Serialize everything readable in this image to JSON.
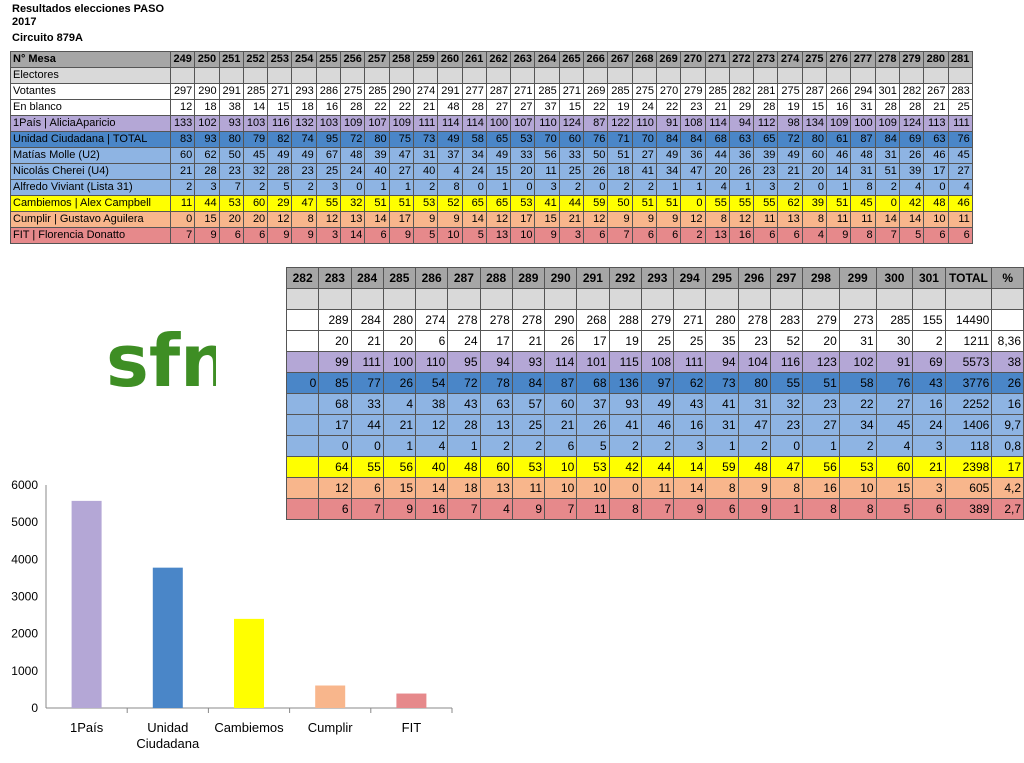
{
  "header": {
    "line1": "Resultados elecciones PASO",
    "line2": "2017",
    "line3": "Circuito 879A"
  },
  "logo_text": "sfn",
  "table1": {
    "head_label": "N° Mesa",
    "cols": [
      "249",
      "250",
      "251",
      "252",
      "253",
      "254",
      "255",
      "256",
      "257",
      "258",
      "259",
      "260",
      "261",
      "262",
      "263",
      "264",
      "265",
      "266",
      "267",
      "268",
      "269",
      "270",
      "271",
      "272",
      "273",
      "274",
      "275",
      "276",
      "277",
      "278",
      "279",
      "280",
      "281"
    ],
    "rows": [
      {
        "label": "Electores",
        "style": "grey",
        "values": [
          "",
          "",
          "",
          "",
          "",
          "",
          "",
          "",
          "",
          "",
          "",
          "",
          "",
          "",
          "",
          "",
          "",
          "",
          "",
          "",
          "",
          "",
          "",
          "",
          "",
          "",
          "",
          "",
          "",
          "",
          "",
          "",
          ""
        ]
      },
      {
        "label": "Votantes",
        "style": "white",
        "values": [
          "297",
          "290",
          "291",
          "285",
          "271",
          "293",
          "286",
          "275",
          "285",
          "290",
          "274",
          "291",
          "277",
          "287",
          "271",
          "285",
          "271",
          "269",
          "285",
          "275",
          "270",
          "279",
          "285",
          "282",
          "281",
          "275",
          "287",
          "266",
          "294",
          "301",
          "282",
          "267",
          "283"
        ]
      },
      {
        "label": "En blanco",
        "style": "white",
        "values": [
          "12",
          "18",
          "38",
          "14",
          "15",
          "18",
          "16",
          "28",
          "22",
          "22",
          "21",
          "48",
          "28",
          "27",
          "27",
          "37",
          "15",
          "22",
          "19",
          "24",
          "22",
          "23",
          "21",
          "29",
          "28",
          "19",
          "15",
          "16",
          "31",
          "28",
          "28",
          "21",
          "25"
        ]
      },
      {
        "label": "1País | AliciaAparicio",
        "style": "purple",
        "values": [
          "133",
          "102",
          "93",
          "103",
          "116",
          "132",
          "103",
          "109",
          "107",
          "109",
          "111",
          "114",
          "114",
          "100",
          "107",
          "110",
          "124",
          "87",
          "122",
          "110",
          "91",
          "108",
          "114",
          "94",
          "112",
          "98",
          "134",
          "109",
          "100",
          "109",
          "124",
          "113",
          "111"
        ]
      },
      {
        "label": "Unidad Ciudadana | TOTAL",
        "style": "darkblue",
        "values": [
          "83",
          "93",
          "80",
          "79",
          "82",
          "74",
          "95",
          "72",
          "80",
          "75",
          "73",
          "49",
          "58",
          "65",
          "53",
          "70",
          "60",
          "76",
          "71",
          "70",
          "84",
          "84",
          "68",
          "63",
          "65",
          "72",
          "80",
          "61",
          "87",
          "84",
          "69",
          "63",
          "76"
        ]
      },
      {
        "label": "Matías Molle (U2)",
        "style": "lightblue",
        "values": [
          "60",
          "62",
          "50",
          "45",
          "49",
          "49",
          "67",
          "48",
          "39",
          "47",
          "31",
          "37",
          "34",
          "49",
          "33",
          "56",
          "33",
          "50",
          "51",
          "27",
          "49",
          "36",
          "44",
          "36",
          "39",
          "49",
          "60",
          "46",
          "48",
          "31",
          "26",
          "46",
          "45"
        ]
      },
      {
        "label": "Nicolás Cherei (U4)",
        "style": "lightblue",
        "values": [
          "21",
          "28",
          "23",
          "32",
          "28",
          "23",
          "25",
          "24",
          "40",
          "27",
          "40",
          "4",
          "24",
          "15",
          "20",
          "11",
          "25",
          "26",
          "18",
          "41",
          "34",
          "47",
          "20",
          "26",
          "23",
          "21",
          "20",
          "14",
          "31",
          "51",
          "39",
          "17",
          "27"
        ]
      },
      {
        "label": "Alfredo Viviant (Lista 31)",
        "style": "lightblue",
        "values": [
          "2",
          "3",
          "7",
          "2",
          "5",
          "2",
          "3",
          "0",
          "1",
          "1",
          "2",
          "8",
          "0",
          "1",
          "0",
          "3",
          "2",
          "0",
          "2",
          "2",
          "1",
          "1",
          "4",
          "1",
          "3",
          "2",
          "0",
          "1",
          "8",
          "2",
          "4",
          "0",
          "4"
        ]
      },
      {
        "label": "Cambiemos | Alex Campbell",
        "style": "yellow",
        "values": [
          "11",
          "44",
          "53",
          "60",
          "29",
          "47",
          "55",
          "32",
          "51",
          "51",
          "53",
          "52",
          "65",
          "65",
          "53",
          "41",
          "44",
          "59",
          "50",
          "51",
          "51",
          "0",
          "55",
          "55",
          "55",
          "62",
          "39",
          "51",
          "45",
          "0",
          "42",
          "48",
          "46"
        ]
      },
      {
        "label": "Cumplir | Gustavo Aguilera",
        "style": "orange",
        "values": [
          "0",
          "15",
          "20",
          "20",
          "12",
          "8",
          "12",
          "13",
          "14",
          "17",
          "9",
          "9",
          "14",
          "12",
          "17",
          "15",
          "21",
          "12",
          "9",
          "9",
          "9",
          "12",
          "8",
          "12",
          "11",
          "13",
          "8",
          "11",
          "11",
          "14",
          "14",
          "10",
          "11"
        ]
      },
      {
        "label": "FIT | Florencia Donatto",
        "style": "red",
        "values": [
          "7",
          "9",
          "6",
          "6",
          "9",
          "9",
          "3",
          "14",
          "6",
          "9",
          "5",
          "10",
          "5",
          "13",
          "10",
          "9",
          "3",
          "6",
          "7",
          "6",
          "6",
          "2",
          "13",
          "16",
          "6",
          "6",
          "4",
          "9",
          "8",
          "7",
          "5",
          "6",
          "6"
        ]
      }
    ]
  },
  "table2": {
    "cols": [
      "282",
      "283",
      "284",
      "285",
      "286",
      "287",
      "288",
      "289",
      "290",
      "291",
      "292",
      "293",
      "294",
      "295",
      "296",
      "297",
      "298",
      "299",
      "300",
      "301",
      "TOTAL",
      "%"
    ],
    "rows": [
      {
        "style": "grey",
        "values": [
          "",
          "",
          "",
          "",
          "",
          "",
          "",
          "",
          "",
          "",
          "",
          "",
          "",
          "",
          "",
          "",
          "",
          "",
          "",
          "",
          "",
          ""
        ]
      },
      {
        "style": "white",
        "values": [
          "",
          "289",
          "284",
          "280",
          "274",
          "278",
          "278",
          "278",
          "290",
          "268",
          "288",
          "279",
          "271",
          "280",
          "278",
          "283",
          "279",
          "273",
          "285",
          "155",
          "14490",
          ""
        ]
      },
      {
        "style": "white",
        "values": [
          "",
          "20",
          "21",
          "20",
          "6",
          "24",
          "17",
          "21",
          "26",
          "17",
          "19",
          "25",
          "25",
          "35",
          "23",
          "52",
          "20",
          "31",
          "30",
          "2",
          "1211",
          "8,36"
        ]
      },
      {
        "style": "purple",
        "values": [
          "",
          "99",
          "111",
          "100",
          "110",
          "95",
          "94",
          "93",
          "114",
          "101",
          "115",
          "108",
          "111",
          "94",
          "104",
          "116",
          "123",
          "102",
          "91",
          "69",
          "5573",
          "38"
        ]
      },
      {
        "style": "darkblue",
        "values": [
          "0",
          "85",
          "77",
          "26",
          "54",
          "72",
          "78",
          "84",
          "87",
          "68",
          "136",
          "97",
          "62",
          "73",
          "80",
          "55",
          "51",
          "58",
          "76",
          "43",
          "3776",
          "26"
        ]
      },
      {
        "style": "lightblue",
        "values": [
          "",
          "68",
          "33",
          "4",
          "38",
          "43",
          "63",
          "57",
          "60",
          "37",
          "93",
          "49",
          "43",
          "41",
          "31",
          "32",
          "23",
          "22",
          "27",
          "16",
          "2252",
          "16"
        ]
      },
      {
        "style": "lightblue",
        "values": [
          "",
          "17",
          "44",
          "21",
          "12",
          "28",
          "13",
          "25",
          "21",
          "26",
          "41",
          "46",
          "16",
          "31",
          "47",
          "23",
          "27",
          "34",
          "45",
          "24",
          "1406",
          "9,7"
        ]
      },
      {
        "style": "lightblue",
        "values": [
          "",
          "0",
          "0",
          "1",
          "4",
          "1",
          "2",
          "2",
          "6",
          "5",
          "2",
          "2",
          "3",
          "1",
          "2",
          "0",
          "1",
          "2",
          "4",
          "3",
          "118",
          "0,8"
        ]
      },
      {
        "style": "yellow",
        "values": [
          "",
          "64",
          "55",
          "56",
          "40",
          "48",
          "60",
          "53",
          "10",
          "53",
          "42",
          "44",
          "14",
          "59",
          "48",
          "47",
          "56",
          "53",
          "60",
          "21",
          "2398",
          "17"
        ]
      },
      {
        "style": "orange",
        "values": [
          "",
          "12",
          "6",
          "15",
          "14",
          "18",
          "13",
          "11",
          "10",
          "10",
          "0",
          "11",
          "14",
          "8",
          "9",
          "8",
          "16",
          "10",
          "15",
          "3",
          "605",
          "4,2"
        ]
      },
      {
        "style": "red",
        "values": [
          "",
          "6",
          "7",
          "9",
          "16",
          "7",
          "4",
          "9",
          "7",
          "11",
          "8",
          "7",
          "9",
          "6",
          "9",
          "1",
          "8",
          "8",
          "5",
          "6",
          "389",
          "2,7"
        ]
      }
    ]
  },
  "chart_data": {
    "type": "bar",
    "categories": [
      "1País",
      "Unidad\nCiudadana",
      "Cambiemos",
      "Cumplir",
      "FIT"
    ],
    "values": [
      5573,
      3776,
      2398,
      605,
      389
    ],
    "colors": [
      "#b4a7d6",
      "#4a86c8",
      "#ffff00",
      "#f8b68c",
      "#e6898b"
    ],
    "yticks": [
      0,
      1000,
      2000,
      3000,
      4000,
      5000,
      6000
    ],
    "ylim": [
      0,
      6000
    ],
    "grid": false
  }
}
